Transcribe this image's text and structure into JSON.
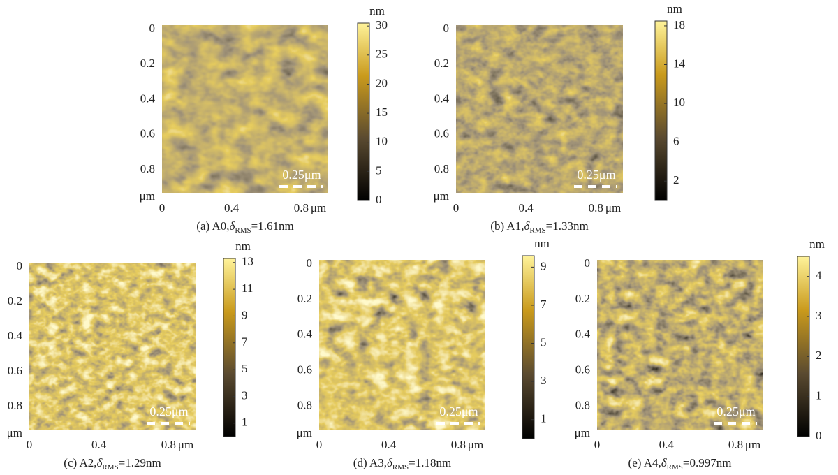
{
  "panels": [
    {
      "caption": {
        "prefix": "(a) A0,",
        "symbol": "δ",
        "subscript": "RMS",
        "suffix": "=1.61nm"
      },
      "y_ticks": [
        "0",
        "0.2",
        "0.4",
        "0.6",
        "0.8"
      ],
      "y_unit": "μm",
      "x_ticks": [
        "0",
        "0.4",
        "0.8"
      ],
      "x_unit": "μm",
      "scale_bar": "0.25μm",
      "colorbar": {
        "unit": "nm",
        "range": [
          0,
          30.5
        ],
        "ticks": [
          0,
          5,
          10,
          15,
          20,
          25,
          30
        ]
      }
    },
    {
      "caption": {
        "prefix": "(b) A1,",
        "symbol": "δ",
        "subscript": "RMS",
        "suffix": "=1.33nm"
      },
      "y_ticks": [
        "0",
        "0.2",
        "0.4",
        "0.6",
        "0.8"
      ],
      "y_unit": "μm",
      "x_ticks": [
        "0",
        "0.4",
        "0.8"
      ],
      "x_unit": "μm",
      "scale_bar": "0.25μm",
      "colorbar": {
        "unit": "nm",
        "range": [
          0,
          18.5
        ],
        "ticks": [
          2,
          6,
          10,
          14,
          18
        ]
      }
    },
    {
      "caption": {
        "prefix": "(c) A2,",
        "symbol": "δ",
        "subscript": "RMS",
        "suffix": "=1.29nm"
      },
      "y_ticks": [
        "0",
        "0.2",
        "0.4",
        "0.6",
        "0.8"
      ],
      "y_unit": "μm",
      "x_ticks": [
        "0",
        "0.4",
        "0.8"
      ],
      "x_unit": "μm",
      "scale_bar": "0.25μm",
      "colorbar": {
        "unit": "nm",
        "range": [
          0,
          13.3
        ],
        "ticks": [
          1,
          3,
          5,
          7,
          9,
          11,
          13
        ]
      }
    },
    {
      "caption": {
        "prefix": "(d) A3,",
        "symbol": "δ",
        "subscript": "RMS",
        "suffix": "=1.18nm"
      },
      "y_ticks": [
        "0",
        "0.2",
        "0.4",
        "0.6",
        "0.8"
      ],
      "y_unit": "μm",
      "x_ticks": [
        "0",
        "0.4",
        "0.8"
      ],
      "x_unit": "μm",
      "scale_bar": "0.25μm",
      "colorbar": {
        "unit": "nm",
        "range": [
          0,
          9.6
        ],
        "ticks": [
          1,
          3,
          5,
          7,
          9
        ]
      }
    },
    {
      "caption": {
        "prefix": "(e) A4,",
        "symbol": "δ",
        "subscript": "RMS",
        "suffix": "=0.997nm"
      },
      "y_ticks": [
        "0",
        "0.2",
        "0.4",
        "0.6",
        "0.8"
      ],
      "y_unit": "μm",
      "x_ticks": [
        "0",
        "0.4",
        "0.8"
      ],
      "x_unit": "μm",
      "scale_bar": "0.25μm",
      "colorbar": {
        "unit": "nm",
        "range": [
          0,
          4.5
        ],
        "ticks": [
          0,
          1,
          2,
          3,
          4
        ]
      }
    }
  ]
}
